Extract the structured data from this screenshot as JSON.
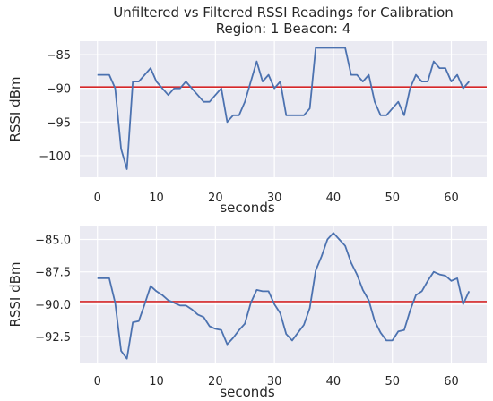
{
  "title_line1": "Unfiltered vs Filtered RSSI Readings for Calibration",
  "title_line2": "Region: 1 Beacon: 4",
  "colors": {
    "background": "#eaeaf2",
    "grid": "#ffffff",
    "series": "#4c72b0",
    "reference": "#d62728",
    "text": "#262626"
  },
  "chart_data": [
    {
      "type": "line",
      "xlabel": "seconds",
      "ylabel": "RSSI dBm",
      "xlim": [
        -3,
        66
      ],
      "ylim": [
        -103.2,
        -83.0
      ],
      "xticks": [
        0,
        10,
        20,
        30,
        40,
        50,
        60
      ],
      "yticks": [
        -85,
        -90,
        -95,
        -100
      ],
      "ytick_labels": [
        "−85",
        "−90",
        "−95",
        "−100"
      ],
      "grid": true,
      "reference_line": -89.8,
      "x": [
        0,
        1,
        2,
        3,
        4,
        5,
        6,
        7,
        8,
        9,
        10,
        11,
        12,
        13,
        14,
        15,
        16,
        17,
        18,
        19,
        20,
        21,
        22,
        23,
        24,
        25,
        26,
        27,
        28,
        29,
        30,
        31,
        32,
        33,
        34,
        35,
        36,
        37,
        38,
        39,
        40,
        41,
        42,
        43,
        44,
        45,
        46,
        47,
        48,
        49,
        50,
        51,
        52,
        53,
        54,
        55,
        56,
        57,
        58,
        59,
        60,
        61,
        62,
        63
      ],
      "y": [
        -88,
        -88,
        -88,
        -90,
        -99,
        -102,
        -89,
        -89,
        -88,
        -87,
        -89,
        -90,
        -91,
        -90,
        -90,
        -89,
        -90,
        -91,
        -92,
        -92,
        -91,
        -90,
        -95,
        -94,
        -94,
        -92,
        -89,
        -86,
        -89,
        -88,
        -90,
        -89,
        -94,
        -94,
        -94,
        -94,
        -93,
        -84,
        -84,
        -84,
        -84,
        -84,
        -84,
        -88,
        -88,
        -89,
        -88,
        -92,
        -94,
        -94,
        -93,
        -92,
        -94,
        -90,
        -88,
        -89,
        -89,
        -86,
        -87,
        -87,
        -89,
        -88,
        -90,
        -89
      ]
    },
    {
      "type": "line",
      "xlabel": "seconds",
      "ylabel": "RSSI dBm",
      "xlim": [
        -3,
        66
      ],
      "ylim": [
        -94.5,
        -84.0
      ],
      "xticks": [
        0,
        10,
        20,
        30,
        40,
        50,
        60
      ],
      "yticks": [
        -85.0,
        -87.5,
        -90.0,
        -92.5
      ],
      "ytick_labels": [
        "−85.0",
        "−87.5",
        "−90.0",
        "−92.5"
      ],
      "grid": true,
      "reference_line": -89.8,
      "x": [
        0,
        1,
        2,
        3,
        4,
        5,
        6,
        7,
        8,
        9,
        10,
        11,
        12,
        13,
        14,
        15,
        16,
        17,
        18,
        19,
        20,
        21,
        22,
        23,
        24,
        25,
        26,
        27,
        28,
        29,
        30,
        31,
        32,
        33,
        34,
        35,
        36,
        37,
        38,
        39,
        40,
        41,
        42,
        43,
        44,
        45,
        46,
        47,
        48,
        49,
        50,
        51,
        52,
        53,
        54,
        55,
        56,
        57,
        58,
        59,
        60,
        61,
        62,
        63
      ],
      "y": [
        -88.0,
        -88.0,
        -88.0,
        -89.9,
        -93.6,
        -94.2,
        -91.4,
        -91.3,
        -90.0,
        -88.6,
        -89.0,
        -89.3,
        -89.7,
        -89.9,
        -90.1,
        -90.1,
        -90.4,
        -90.8,
        -91.0,
        -91.7,
        -91.9,
        -92.0,
        -93.1,
        -92.6,
        -92.0,
        -91.5,
        -89.9,
        -88.9,
        -89.0,
        -89.0,
        -90.0,
        -90.7,
        -92.3,
        -92.8,
        -92.2,
        -91.6,
        -90.3,
        -87.4,
        -86.3,
        -85.0,
        -84.5,
        -85.0,
        -85.5,
        -86.8,
        -87.7,
        -88.9,
        -89.7,
        -91.3,
        -92.2,
        -92.8,
        -92.8,
        -92.1,
        -92.0,
        -90.5,
        -89.3,
        -89.0,
        -88.2,
        -87.5,
        -87.7,
        -87.8,
        -88.2,
        -88.0,
        -90.0,
        -89.0
      ]
    }
  ]
}
